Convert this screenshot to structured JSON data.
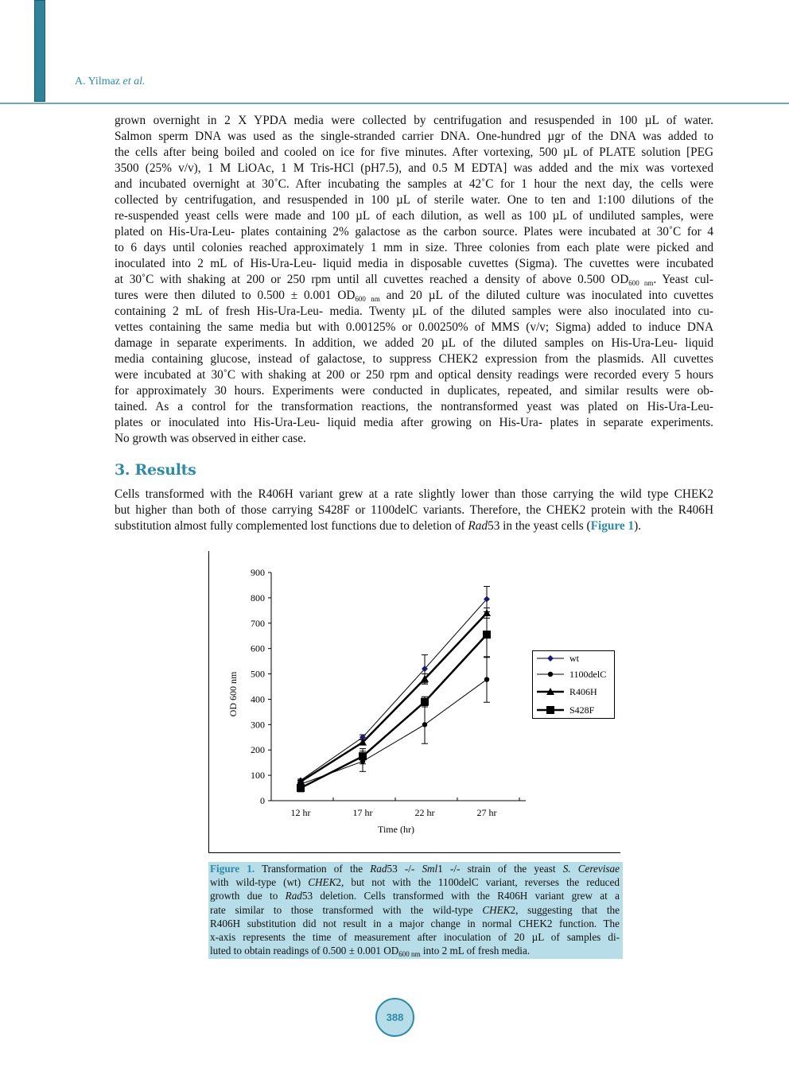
{
  "header": {
    "author": "A. Yilmaz",
    "etal": "et al."
  },
  "body": {
    "methods": [
      "grown overnight in 2 X YPDA media were collected by centrifugation and resuspended in 100 µL of water.",
      "Salmon sperm DNA was used as the single-stranded carrier DNA. One-hundred µgr of the DNA was added to",
      "the cells after being boiled and cooled on ice for five minutes. After vortexing, 500 µL of PLATE solution [PEG",
      "3500 (25% v/v), 1 M LiOAc, 1 M Tris-HCl (pH7.5), and 0.5 M EDTA] was added and the mix was vortexed",
      "and incubated overnight at 30˚C. After incubating the samples at 42˚C for 1 hour the next day, the cells were",
      "collected by centrifugation, and resuspended in 100 µL of sterile water. One to ten and 1:100 dilutions of the",
      "re-suspended yeast cells were made and 100 µL of each dilution, as well as 100 µL of undiluted samples, were",
      "plated on His-Ura-Leu- plates containing 2% galactose as the carbon source. Plates were incubated at 30˚C for 4",
      "to 6 days until colonies reached approximately 1 mm in size. Three colonies from each plate were picked and",
      "inoculated into 2 mL of His-Ura-Leu- liquid media in disposable cuvettes (Sigma). The cuvettes were incubated",
      [
        {
          "t": "at 30˚C with shaking at 200 or 250 rpm until all cuvettes reached a density of above 0.500 OD"
        },
        {
          "sub": "600 nm"
        },
        {
          "t": ". Yeast cul-"
        }
      ],
      [
        {
          "t": "tures were then diluted to 0.500 ± 0.001 OD"
        },
        {
          "sub": "600 nm"
        },
        {
          "t": " and 20 µL of the diluted culture was inoculated into cuvettes"
        }
      ],
      "containing 2 mL of fresh His-Ura-Leu- media. Twenty µL of the diluted samples were also inoculated into cu-",
      "vettes containing the same media but with 0.00125% or 0.00250% of MMS (v/v; Sigma) added to induce DNA",
      "damage in separate experiments. In addition, we added 20 µL of the diluted samples on His-Ura-Leu- liquid",
      "media containing glucose, instead of galactose, to suppress CHEK2 expression from the plasmids. All cuvettes",
      "were incubated at 30˚C with shaking at 200 or 250 rpm and optical density readings were recorded every 5 hours",
      "for approximately 30 hours. Experiments were conducted in duplicates, repeated, and similar results were ob-",
      "tained. As a control for the transformation reactions, the nontransformed yeast was plated on His-Ura-Leu-",
      "plates or inoculated into His-Ura-Leu- liquid media after growing on His-Ura- plates in separate experiments.",
      "No growth was observed in either case."
    ],
    "results_heading": "3. Results",
    "results": [
      "Cells transformed with the R406H variant grew at a rate slightly lower than those carrying the wild type CHEK2",
      "but higher than both of those carrying S428F or 1100delC variants. Therefore, the CHEK2 protein with the R406H",
      [
        {
          "t": "substitution almost fully complemented lost functions due to deletion of "
        },
        {
          "i": "Rad"
        },
        {
          "t": "53 in the yeast cells ("
        },
        {
          "link": "Figure 1"
        },
        {
          "t": ")."
        }
      ]
    ]
  },
  "caption": [
    [
      {
        "link": "Figure 1."
      },
      {
        "t": " Transformation of the "
      },
      {
        "i": "Rad"
      },
      {
        "t": "53 -/- "
      },
      {
        "i": "Sml"
      },
      {
        "t": "1 -/- strain of the yeast "
      },
      {
        "i": "S. Cerevisae"
      }
    ],
    [
      {
        "t": "with wild-type (wt) "
      },
      {
        "i": "CHEK"
      },
      {
        "t": "2, but not with the 1100delC variant, reverses the reduced"
      }
    ],
    [
      {
        "t": "growth due to "
      },
      {
        "i": "Rad"
      },
      {
        "t": "53 deletion. Cells transformed with the R406H variant grew at a"
      }
    ],
    [
      {
        "t": "rate similar to those transformed with the wild-type "
      },
      {
        "i": "CHEK"
      },
      {
        "t": "2, suggesting that the"
      }
    ],
    "R406H substitution did not result in a major change in normal CHEK2 function. The",
    "x-axis represents the time of measurement after inoculation of 20 µL of samples di-",
    [
      {
        "t": "luted to obtain readings of 0.500 ± 0.001 OD"
      },
      {
        "sub": "600 nm"
      },
      {
        "t": " into 2 mL of fresh media."
      }
    ]
  ],
  "page_number": "388",
  "colors": {
    "accent": "#2f8aa6",
    "caption_bg": "#b7dde8",
    "wt_marker": "#1a1a6e"
  },
  "chart_data": {
    "type": "line",
    "xlabel": "Time (hr)",
    "ylabel": "OD 600 nm",
    "categories": [
      "12 hr",
      "17 hr",
      "22 hr",
      "27 hr"
    ],
    "ylim": [
      0,
      900
    ],
    "yticks": [
      "0",
      "100",
      "200",
      "300",
      "400",
      "500",
      "600",
      "700",
      "800",
      "900"
    ],
    "grid": false,
    "legend_position": "right",
    "series": [
      {
        "name": "wt",
        "marker": "diamond",
        "values": [
          80,
          250,
          520,
          795
        ],
        "errors": [
          5,
          10,
          55,
          50
        ]
      },
      {
        "name": "1100delC",
        "marker": "circle",
        "values": [
          65,
          155,
          300,
          478
        ],
        "errors": [
          5,
          40,
          75,
          90
        ]
      },
      {
        "name": "R406H",
        "marker": "triangle",
        "values": [
          75,
          230,
          480,
          740
        ],
        "errors": [
          5,
          10,
          20,
          20
        ]
      },
      {
        "name": "S428F",
        "marker": "square",
        "values": [
          50,
          175,
          390,
          655
        ],
        "errors": [
          15,
          30,
          20,
          90
        ]
      }
    ]
  }
}
